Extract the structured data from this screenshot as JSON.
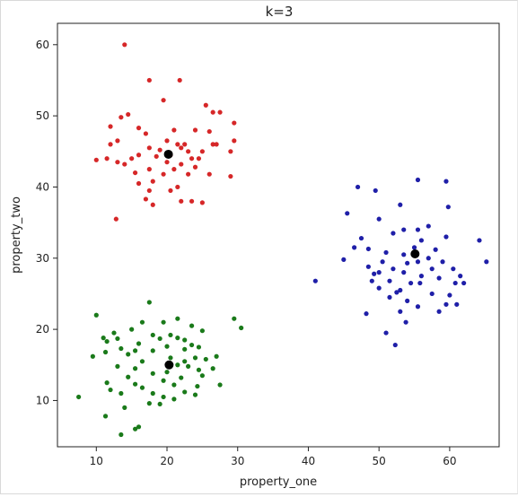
{
  "chart_data": {
    "type": "scatter",
    "title": "k=3",
    "xlabel": "property_one",
    "ylabel": "property_two",
    "xlim": [
      4.5,
      67
    ],
    "ylim": [
      3.5,
      63
    ],
    "xticks": [
      10,
      20,
      30,
      40,
      50,
      60
    ],
    "yticks": [
      10,
      20,
      30,
      40,
      50,
      60
    ],
    "grid": false,
    "legend": "none",
    "series": [
      {
        "color": "#d62728",
        "points": [
          [
            14,
            60
          ],
          [
            17.5,
            55
          ],
          [
            21.8,
            55
          ],
          [
            19.5,
            52.2
          ],
          [
            25.5,
            51.5
          ],
          [
            26.5,
            50.5
          ],
          [
            27.5,
            50.5
          ],
          [
            14.5,
            50.2
          ],
          [
            13.5,
            49.8
          ],
          [
            29.5,
            49
          ],
          [
            12,
            48.5
          ],
          [
            16,
            48.3
          ],
          [
            21,
            48
          ],
          [
            24,
            48
          ],
          [
            26,
            47.8
          ],
          [
            17,
            47.5
          ],
          [
            13,
            46.5
          ],
          [
            12,
            46
          ],
          [
            20,
            46.5
          ],
          [
            21.5,
            46
          ],
          [
            22.5,
            46
          ],
          [
            26.5,
            46
          ],
          [
            27,
            46
          ],
          [
            29.5,
            46.5
          ],
          [
            17.5,
            45.5
          ],
          [
            19,
            45.2
          ],
          [
            22,
            45.5
          ],
          [
            23,
            45
          ],
          [
            25,
            45
          ],
          [
            29,
            45
          ],
          [
            16,
            44.5
          ],
          [
            18.5,
            44.3
          ],
          [
            20.5,
            44.5
          ],
          [
            23.5,
            44
          ],
          [
            24.5,
            44
          ],
          [
            10,
            43.8
          ],
          [
            11.5,
            44
          ],
          [
            15,
            44
          ],
          [
            13,
            43.5
          ],
          [
            14,
            43.2
          ],
          [
            20,
            43.5
          ],
          [
            22,
            43.2
          ],
          [
            24,
            42.8
          ],
          [
            17.5,
            42.5
          ],
          [
            21,
            42.5
          ],
          [
            15.5,
            42
          ],
          [
            19.5,
            41.8
          ],
          [
            23,
            41.8
          ],
          [
            26,
            41.8
          ],
          [
            29,
            41.5
          ],
          [
            16,
            40.5
          ],
          [
            18,
            40.8
          ],
          [
            21.5,
            40
          ],
          [
            17.5,
            39.5
          ],
          [
            20.5,
            39.5
          ],
          [
            17,
            38.3
          ],
          [
            22,
            38
          ],
          [
            23.5,
            38
          ],
          [
            25,
            37.8
          ],
          [
            18,
            37.5
          ],
          [
            12.8,
            35.5
          ]
        ]
      },
      {
        "color": "#1f1fa8",
        "points": [
          [
            55.5,
            41
          ],
          [
            59.5,
            40.8
          ],
          [
            47,
            40
          ],
          [
            49.5,
            39.5
          ],
          [
            53,
            37.5
          ],
          [
            59.8,
            37.2
          ],
          [
            45.5,
            36.3
          ],
          [
            50,
            35.5
          ],
          [
            57,
            34.5
          ],
          [
            53.5,
            34
          ],
          [
            55.5,
            34
          ],
          [
            52,
            33.5
          ],
          [
            47.5,
            32.8
          ],
          [
            56,
            32.5
          ],
          [
            59.5,
            33
          ],
          [
            64.2,
            32.5
          ],
          [
            46.5,
            31.5
          ],
          [
            48.5,
            31.3
          ],
          [
            55,
            31.5
          ],
          [
            58,
            31.2
          ],
          [
            51,
            30.8
          ],
          [
            53.5,
            30.5
          ],
          [
            57,
            30
          ],
          [
            45,
            29.8
          ],
          [
            50.5,
            29.5
          ],
          [
            54,
            29.3
          ],
          [
            55.5,
            29.5
          ],
          [
            59,
            29.5
          ],
          [
            65.2,
            29.5
          ],
          [
            48.5,
            28.8
          ],
          [
            52,
            28.5
          ],
          [
            57.5,
            28.5
          ],
          [
            60.5,
            28.5
          ],
          [
            50,
            28
          ],
          [
            53.5,
            28
          ],
          [
            49.3,
            27.8
          ],
          [
            56,
            27.5
          ],
          [
            58.5,
            27.2
          ],
          [
            61.5,
            27.5
          ],
          [
            41,
            26.8
          ],
          [
            49,
            26.8
          ],
          [
            51.5,
            26.8
          ],
          [
            54.5,
            26.5
          ],
          [
            55.8,
            26.5
          ],
          [
            60.8,
            26.5
          ],
          [
            62,
            26.5
          ],
          [
            50,
            25.8
          ],
          [
            53,
            25.5
          ],
          [
            52.5,
            25.2
          ],
          [
            57.5,
            25
          ],
          [
            60,
            24.8
          ],
          [
            51.5,
            24.5
          ],
          [
            54,
            24
          ],
          [
            59.5,
            23.5
          ],
          [
            61,
            23.5
          ],
          [
            55.5,
            23.2
          ],
          [
            53,
            22.5
          ],
          [
            58.5,
            22.5
          ],
          [
            48.2,
            22.2
          ],
          [
            53.8,
            21
          ],
          [
            51,
            19.5
          ],
          [
            52.3,
            17.8
          ]
        ]
      },
      {
        "color": "#1a7a1a",
        "points": [
          [
            17.5,
            23.8
          ],
          [
            10,
            22
          ],
          [
            21.5,
            21.5
          ],
          [
            29.5,
            21.5
          ],
          [
            16.5,
            21
          ],
          [
            19.5,
            21
          ],
          [
            23.5,
            20.5
          ],
          [
            30.5,
            20.2
          ],
          [
            15,
            20
          ],
          [
            25,
            19.8
          ],
          [
            12.5,
            19.5
          ],
          [
            18,
            19.2
          ],
          [
            20.5,
            19.2
          ],
          [
            11,
            18.8
          ],
          [
            13,
            18.7
          ],
          [
            19,
            18.7
          ],
          [
            21.5,
            18.8
          ],
          [
            22.5,
            18.5
          ],
          [
            11.5,
            18.3
          ],
          [
            16,
            18
          ],
          [
            23.5,
            17.8
          ],
          [
            20,
            17.6
          ],
          [
            24.5,
            17.5
          ],
          [
            13.5,
            17.3
          ],
          [
            22.5,
            17.2
          ],
          [
            15.5,
            17
          ],
          [
            18,
            17
          ],
          [
            11.3,
            16.8
          ],
          [
            14.5,
            16.5
          ],
          [
            9.5,
            16.2
          ],
          [
            24,
            16
          ],
          [
            20.5,
            16
          ],
          [
            27,
            16.2
          ],
          [
            16.5,
            15.5
          ],
          [
            22.5,
            15.5
          ],
          [
            25.5,
            15.8
          ],
          [
            21.5,
            15
          ],
          [
            13,
            14.8
          ],
          [
            15.5,
            14.5
          ],
          [
            23,
            14.8
          ],
          [
            24.5,
            14.3
          ],
          [
            26.5,
            14.5
          ],
          [
            20,
            14
          ],
          [
            18,
            13.8
          ],
          [
            25,
            13.5
          ],
          [
            14.5,
            13.3
          ],
          [
            22,
            13.2
          ],
          [
            19.5,
            12.8
          ],
          [
            11.5,
            12.5
          ],
          [
            15.5,
            12.3
          ],
          [
            21,
            12.2
          ],
          [
            24.3,
            12
          ],
          [
            27.5,
            12.2
          ],
          [
            16.5,
            11.8
          ],
          [
            12,
            11.5
          ],
          [
            13.5,
            11
          ],
          [
            18,
            11
          ],
          [
            22.5,
            11.2
          ],
          [
            24,
            10.8
          ],
          [
            19.5,
            10.5
          ],
          [
            21,
            10.2
          ],
          [
            7.5,
            10.5
          ],
          [
            17.5,
            9.6
          ],
          [
            19,
            9.5
          ],
          [
            14,
            9
          ],
          [
            11.3,
            7.8
          ],
          [
            16,
            6.3
          ],
          [
            15.5,
            6
          ],
          [
            13.5,
            5.2
          ]
        ]
      }
    ],
    "centroids": {
      "color": "#000000",
      "points": [
        [
          20.2,
          44.6
        ],
        [
          55.1,
          30.6
        ],
        [
          20.3,
          15
        ]
      ]
    }
  }
}
